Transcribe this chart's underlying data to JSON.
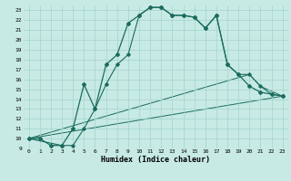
{
  "xlabel": "Humidex (Indice chaleur)",
  "background_color": "#c8eae4",
  "grid_color": "#a0d4cc",
  "line_color": "#1a6b5e",
  "xlim": [
    -0.5,
    23.5
  ],
  "ylim": [
    9,
    23.5
  ],
  "xticks": [
    0,
    1,
    2,
    3,
    4,
    5,
    6,
    7,
    8,
    9,
    10,
    11,
    12,
    13,
    14,
    15,
    16,
    17,
    18,
    19,
    20,
    21,
    22,
    23
  ],
  "yticks": [
    9,
    10,
    11,
    12,
    13,
    14,
    15,
    16,
    17,
    18,
    19,
    20,
    21,
    22,
    23
  ],
  "curve1_x": [
    0,
    1,
    2,
    3,
    4,
    5,
    6,
    7,
    8,
    9,
    10,
    11,
    12,
    13,
    14,
    15,
    16,
    17,
    18,
    19,
    20,
    21,
    22,
    23
  ],
  "curve1_y": [
    10,
    10,
    9.3,
    9.3,
    11.0,
    15.5,
    13.0,
    17.5,
    18.5,
    21.7,
    22.5,
    23.3,
    23.3,
    22.5,
    22.5,
    22.3,
    21.2,
    22.5,
    17.5,
    16.5,
    15.3,
    14.7,
    14.5,
    14.3
  ],
  "curve2_x": [
    0,
    3,
    4,
    5,
    6,
    7,
    8,
    9,
    10,
    11,
    12,
    13,
    14,
    15,
    16,
    17,
    18,
    19,
    20,
    21,
    22,
    23
  ],
  "curve2_y": [
    10,
    9.3,
    9.3,
    11.0,
    13.0,
    15.5,
    17.5,
    18.5,
    22.5,
    23.3,
    23.3,
    22.5,
    22.5,
    22.3,
    21.2,
    22.5,
    17.5,
    16.5,
    16.5,
    15.3,
    14.5,
    14.3
  ],
  "curve3_x": [
    0,
    20,
    21,
    23
  ],
  "curve3_y": [
    10,
    16.5,
    15.3,
    14.3
  ],
  "curve4_x": [
    0,
    23
  ],
  "curve4_y": [
    10,
    14.3
  ]
}
